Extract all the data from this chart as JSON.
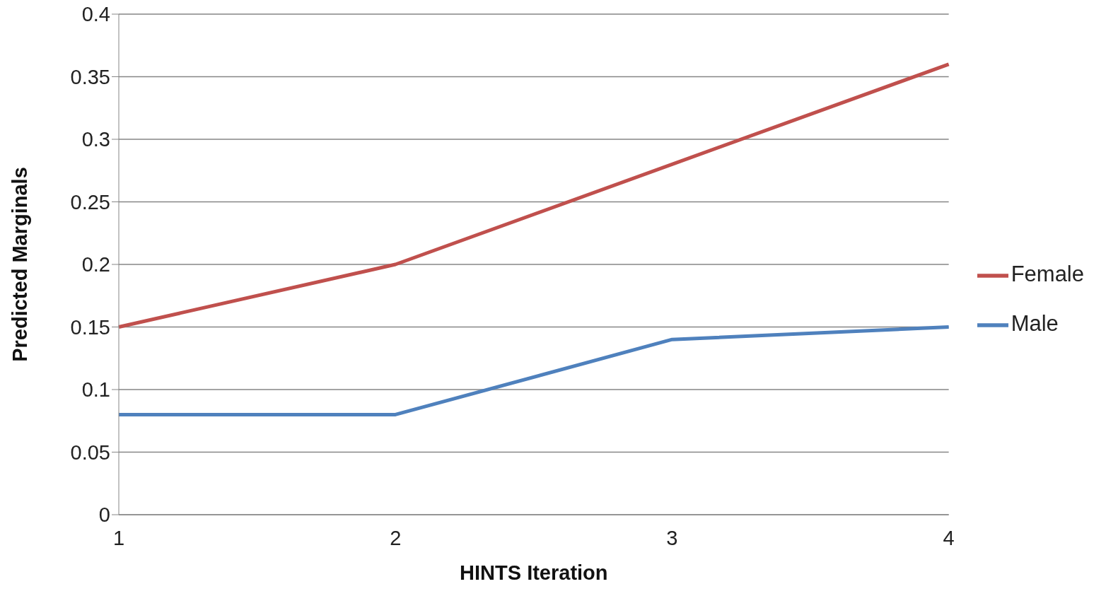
{
  "chart_data": {
    "type": "line",
    "xlabel": "HINTS Iteration",
    "ylabel": "Predicted Marginals",
    "categories": [
      "1",
      "2",
      "3",
      "4"
    ],
    "series": [
      {
        "name": "Female",
        "color": "#c0504d",
        "values": [
          0.15,
          0.2,
          0.28,
          0.36
        ]
      },
      {
        "name": "Male",
        "color": "#4f81bd",
        "values": [
          0.08,
          0.08,
          0.14,
          0.15
        ]
      }
    ],
    "ylim": [
      0,
      0.4
    ],
    "yticks": [
      0,
      0.05,
      0.1,
      0.15,
      0.2,
      0.25,
      0.3,
      0.35,
      0.4
    ],
    "grid": "y",
    "legend": "right",
    "marker": "none",
    "line_style": "solid"
  }
}
